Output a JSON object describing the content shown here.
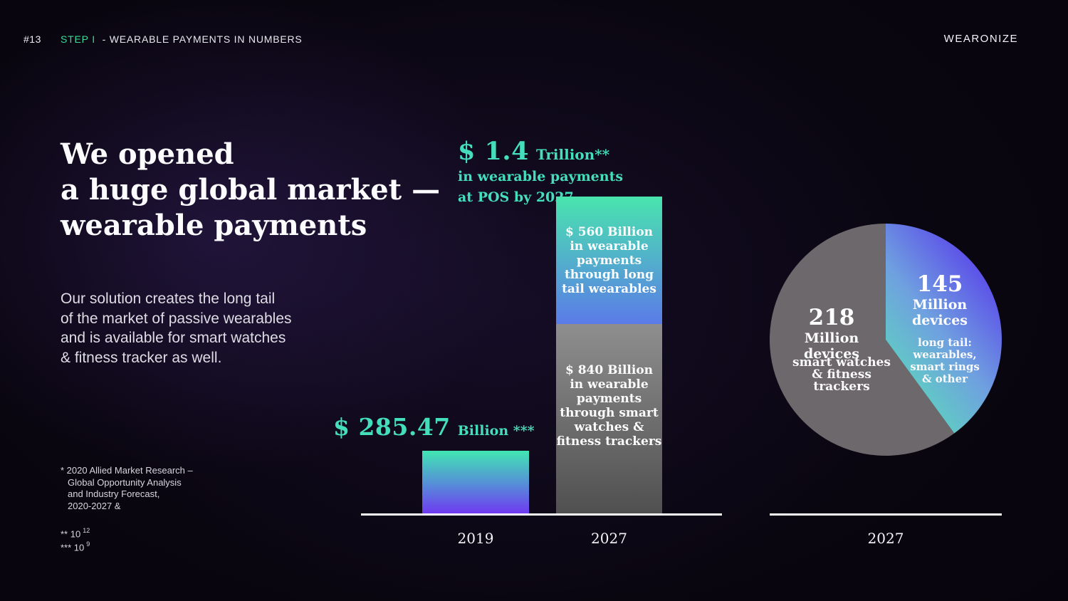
{
  "slide": {
    "page_number": "#13",
    "step_label": "STEP I",
    "step_title": "- WEARABLE PAYMENTS IN NUMBERS",
    "brand": "WEARONIZE",
    "heading": {
      "line1": "We opened",
      "line2": "a huge global market —",
      "line3": "wearable payments"
    },
    "paragraph": "Our solution creates the long tail\nof the market of passive wearables\nand is available for smart watches\n& fitness tracker as well.",
    "footnotes": {
      "source": "* 2020 Allied Market Research –\nGlobal Opportunity Analysis\nand Industry Forecast,\n2020-2027 &",
      "note2_prefix": "** 10",
      "note2_sup": "12",
      "note3_prefix": "*** 10",
      "note3_sup": "9"
    }
  },
  "colors": {
    "accent_teal": "#45DEBD",
    "accent_green": "#3EDA9B",
    "gradient_mint": "#41E6B2",
    "gradient_blue": "#5B7BE8",
    "gradient_purple": "#7134F2",
    "bar_gray_top": "#8E8E8E",
    "bar_gray_bottom": "#4F4F4F",
    "pie_gray": "#6C686B",
    "pie_indigo": "#5D53E8",
    "pie_mint": "#57E7B2",
    "axis_white": "#FBFBFC",
    "background": "#050309"
  },
  "chart_data": [
    {
      "type": "bar",
      "title": "$ 1.4 Trillion** in wearable payments at POS by 2027",
      "title_parts": {
        "value": "$ 1.4",
        "unit": "Trillion**",
        "line2": "in wearable payments",
        "line3": "at POS by 2027"
      },
      "categories": [
        "2019",
        "2027"
      ],
      "value_unit": "billion USD",
      "ylim": [
        0,
        1400
      ],
      "grid": false,
      "legend_position": "none",
      "bars": [
        {
          "category": "2019",
          "total": 285.47,
          "segments": [
            {
              "name": "wearable payments total 2019",
              "value": 285.47,
              "fill": "gradient mint-blue-purple"
            }
          ]
        },
        {
          "category": "2027",
          "total": 1400,
          "segments": [
            {
              "name": "long tail wearables",
              "value": 560,
              "fill": "gradient mint-blue"
            },
            {
              "name": "smart watches & fitness trackers",
              "value": 840,
              "fill": "gray"
            }
          ]
        }
      ],
      "labels": {
        "bar2019_value": "$ 285.47",
        "bar2019_unit": "Billion ***",
        "segment_longtail": "$ 560 Billion\nin wearable\npayments\nthrough long\ntail wearables",
        "segment_smartwatch": "$ 840 Billion\nin wearable\npayments\nthrough smart\nwatches &\nfitness trackers"
      }
    },
    {
      "type": "pie",
      "category_label": "2027",
      "value_unit": "million devices",
      "total": 363,
      "start_angle_deg": 0,
      "slices": [
        {
          "name": "smart watches & fitness trackers",
          "value": 218,
          "value_label": "218",
          "unit_label": "Million devices",
          "desc": "smart watches\n& fitness trackers",
          "color": "#6C686B"
        },
        {
          "name": "long tail: wearables, smart rings & other",
          "value": 145,
          "value_label": "145",
          "unit_label": "Million devices",
          "desc": "long tail:\nwearables,\nsmart rings\n& other",
          "color": "gradient indigo-mint"
        }
      ]
    }
  ]
}
